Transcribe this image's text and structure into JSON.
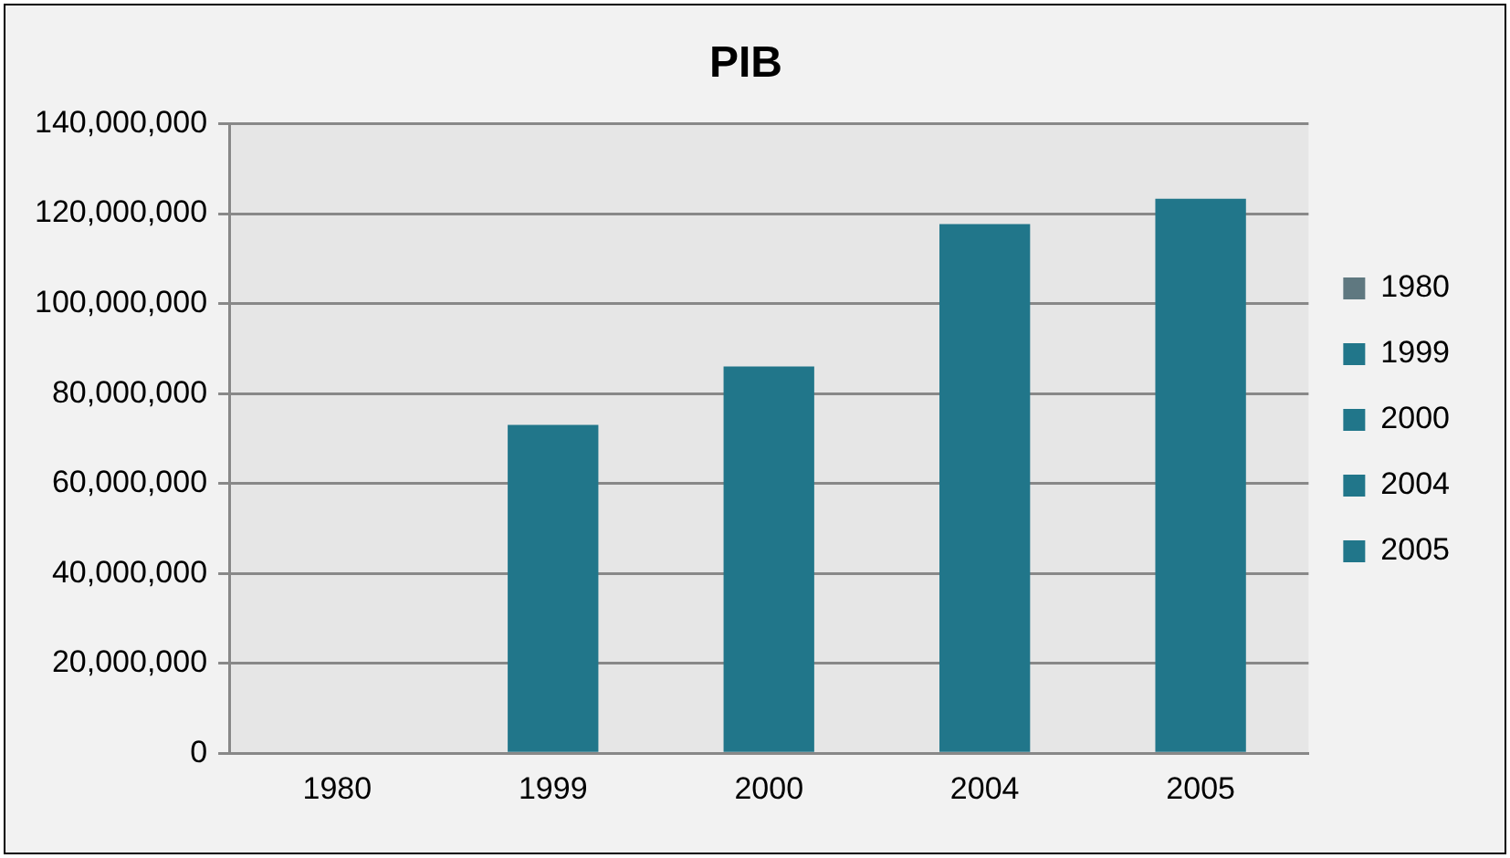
{
  "chart_data": {
    "type": "bar",
    "title": "PIB",
    "categories": [
      "1980",
      "1999",
      "2000",
      "2004",
      "2005"
    ],
    "series": [
      {
        "name": "1980",
        "color": "#5f7880",
        "values": [
          0,
          null,
          null,
          null,
          null
        ]
      },
      {
        "name": "1999",
        "color": "#21768a",
        "values": [
          null,
          73000000,
          null,
          null,
          null
        ]
      },
      {
        "name": "2000",
        "color": "#21768a",
        "values": [
          null,
          null,
          86000000,
          null,
          null
        ]
      },
      {
        "name": "2004",
        "color": "#21768a",
        "values": [
          null,
          null,
          null,
          117700000,
          null
        ]
      },
      {
        "name": "2005",
        "color": "#21768a",
        "values": [
          null,
          null,
          null,
          null,
          123300000
        ]
      }
    ],
    "ylim": [
      0,
      140000000
    ],
    "yticks": [
      {
        "value": 0,
        "label": "0"
      },
      {
        "value": 20000000,
        "label": "20,000,000"
      },
      {
        "value": 40000000,
        "label": "40,000,000"
      },
      {
        "value": 60000000,
        "label": "60,000,000"
      },
      {
        "value": 80000000,
        "label": "80,000,000"
      },
      {
        "value": 100000000,
        "label": "100,000,000"
      },
      {
        "value": 120000000,
        "label": "120,000,000"
      },
      {
        "value": 140000000,
        "label": "140,000,000"
      }
    ],
    "grid": "y",
    "legend": "right"
  }
}
